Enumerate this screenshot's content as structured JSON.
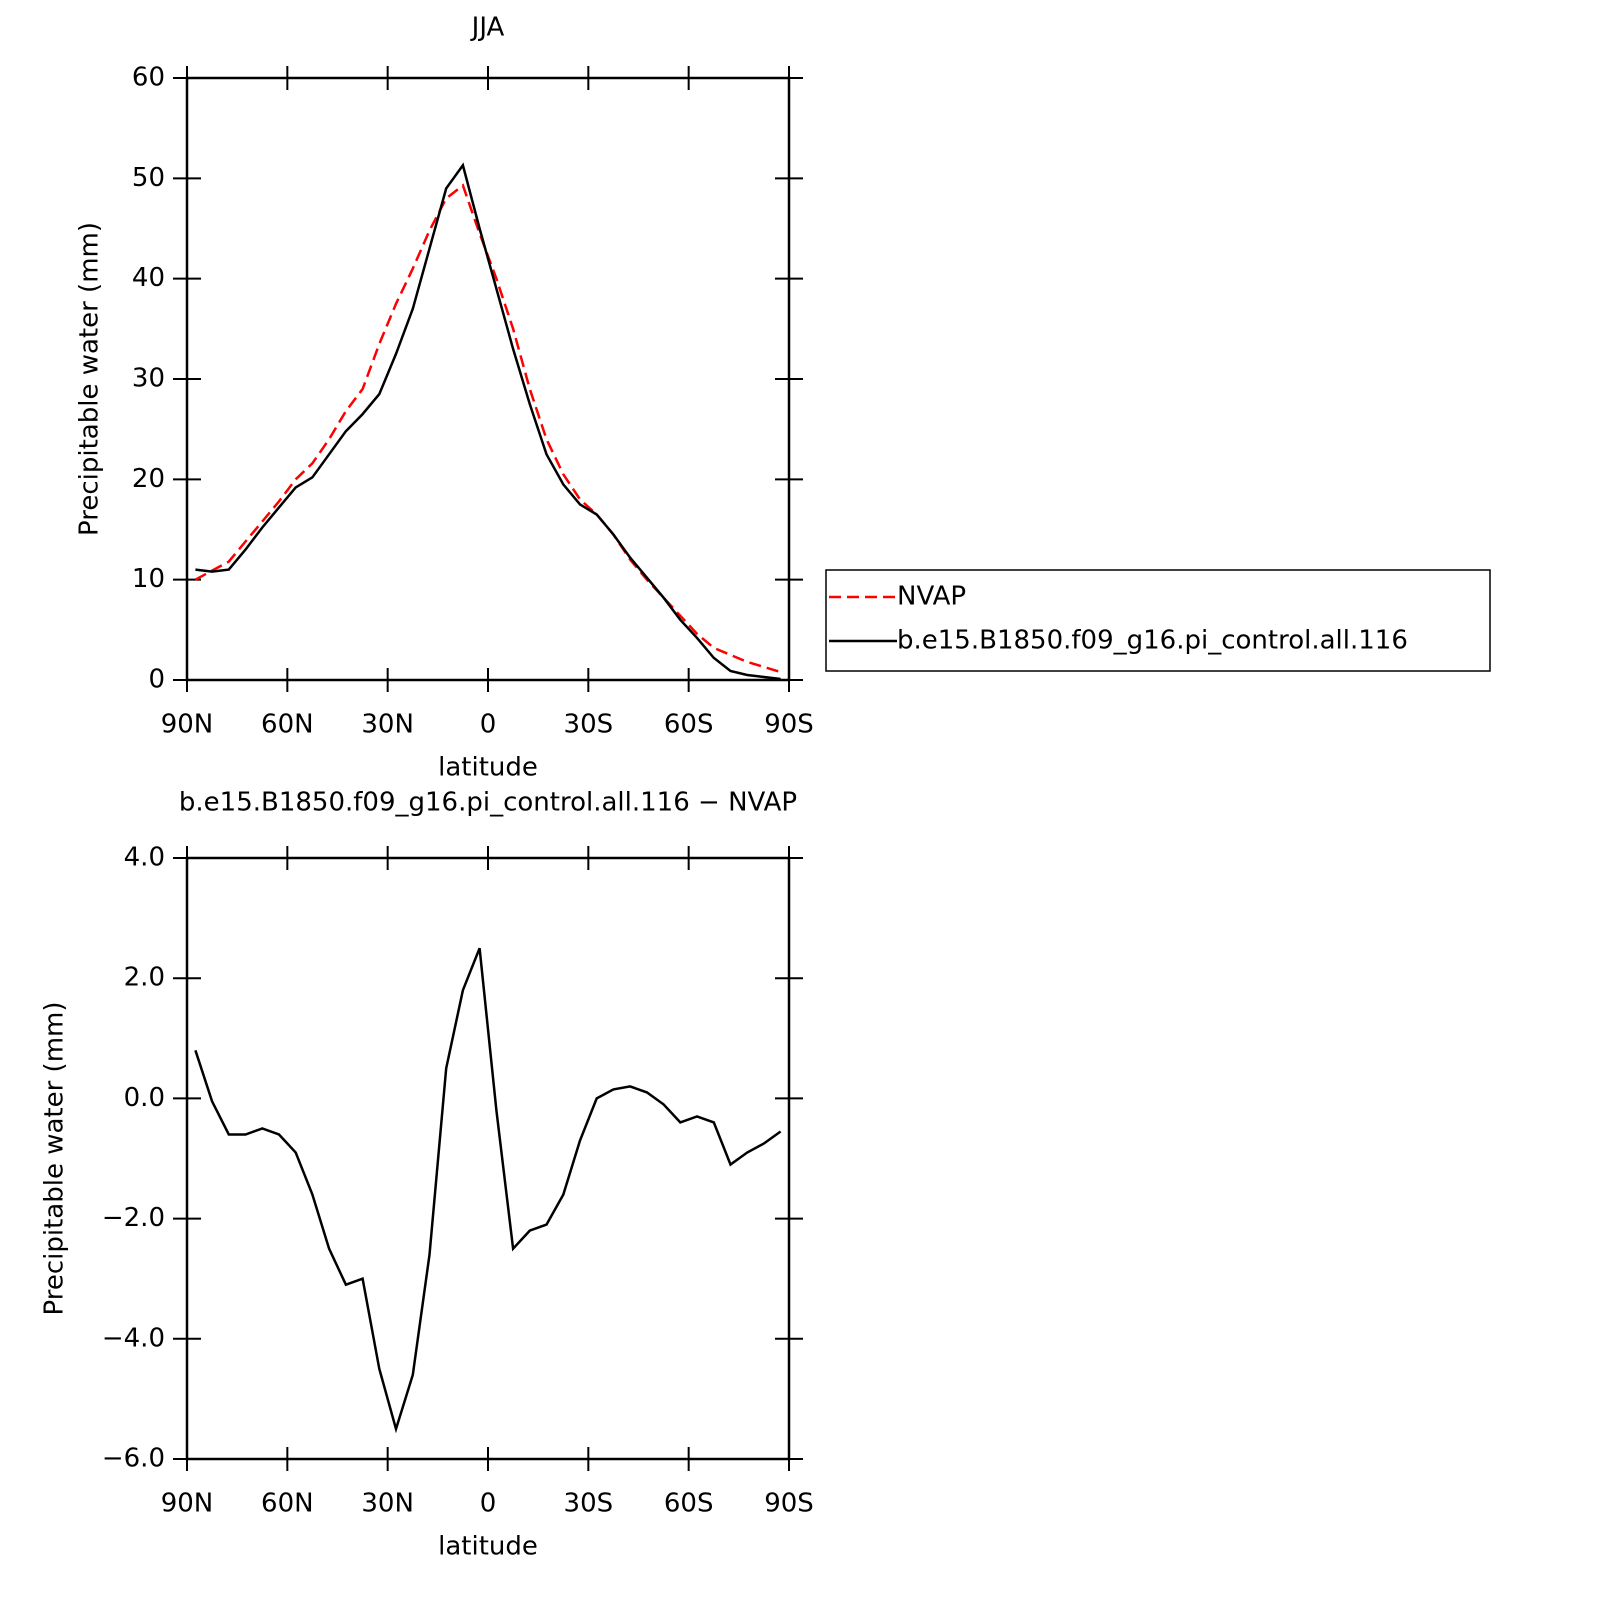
{
  "chart_data": [
    {
      "type": "line",
      "title": "JJA",
      "xlabel": "latitude",
      "ylabel": "Precipitable water (mm)",
      "x": [
        87.5,
        82.5,
        77.5,
        72.5,
        67.5,
        62.5,
        57.5,
        52.5,
        47.5,
        42.5,
        37.5,
        32.5,
        27.5,
        22.5,
        17.5,
        12.5,
        7.5,
        2.5,
        -2.5,
        -7.5,
        -12.5,
        -17.5,
        -22.5,
        -27.5,
        -32.5,
        -37.5,
        -42.5,
        -47.5,
        -52.5,
        -57.5,
        -62.5,
        -67.5,
        -72.5,
        -77.5,
        -82.5,
        -87.5
      ],
      "series": [
        {
          "name": "NVAP",
          "color": "#ff0000",
          "line_style": "dashed",
          "values": [
            10.0,
            10.9,
            11.8,
            13.8,
            15.8,
            17.8,
            20.0,
            21.6,
            24.0,
            26.8,
            29.0,
            33.5,
            37.5,
            41.0,
            44.8,
            48.0,
            49.3,
            44.5,
            40.0,
            35.0,
            29.0,
            24.0,
            20.5,
            18.0,
            16.5,
            14.5,
            12.0,
            10.0,
            8.2,
            6.4,
            4.6,
            3.2,
            2.5,
            1.8,
            1.3,
            0.8
          ]
        },
        {
          "name": "b.e15.B1850.f09_g16.pi_control.all.116",
          "color": "#000000",
          "line_style": "solid",
          "values": [
            11.0,
            10.8,
            11.0,
            13.0,
            15.2,
            17.2,
            19.2,
            20.2,
            22.5,
            24.8,
            26.5,
            28.5,
            32.5,
            37.0,
            43.0,
            49.0,
            51.3,
            45.0,
            39.0,
            33.0,
            27.5,
            22.5,
            19.5,
            17.5,
            16.5,
            14.5,
            12.2,
            10.2,
            8.2,
            6.0,
            4.2,
            2.2,
            0.9,
            0.5,
            0.3,
            0.1
          ]
        }
      ],
      "xlim": [
        90,
        -90
      ],
      "xticks": [
        {
          "value": 90,
          "label": "90N"
        },
        {
          "value": 60,
          "label": "60N"
        },
        {
          "value": 30,
          "label": "30N"
        },
        0,
        {
          "value": -30,
          "label": "30S"
        },
        {
          "value": -60,
          "label": "60S"
        },
        {
          "value": -90,
          "label": "90S"
        }
      ],
      "ylim": [
        0,
        60
      ],
      "yticks": [
        0,
        10,
        20,
        30,
        40,
        50,
        60
      ],
      "legend": "right"
    },
    {
      "type": "line",
      "title": "b.e15.B1850.f09_g16.pi_control.all.116 − NVAP",
      "xlabel": "latitude",
      "ylabel": "Precipitable water (mm)",
      "x": [
        87.5,
        82.5,
        77.5,
        72.5,
        67.5,
        62.5,
        57.5,
        52.5,
        47.5,
        42.5,
        37.5,
        32.5,
        27.5,
        22.5,
        17.5,
        12.5,
        7.5,
        2.5,
        -2.5,
        -7.5,
        -12.5,
        -17.5,
        -22.5,
        -27.5,
        -32.5,
        -37.5,
        -42.5,
        -47.5,
        -52.5,
        -57.5,
        -62.5,
        -67.5,
        -72.5,
        -77.5,
        -82.5,
        -87.5
      ],
      "series": [
        {
          "color": "#000000",
          "line_style": "solid",
          "values": [
            0.8,
            -0.05,
            -0.6,
            -0.6,
            -0.5,
            -0.6,
            -0.9,
            -1.6,
            -2.5,
            -3.1,
            -3.0,
            -4.5,
            -5.5,
            -4.6,
            -2.6,
            0.5,
            1.8,
            2.5,
            -0.2,
            -2.5,
            -2.2,
            -2.1,
            -1.6,
            -0.7,
            0.0,
            0.15,
            0.2,
            0.1,
            -0.1,
            -0.4,
            -0.3,
            -0.4,
            -1.1,
            -0.9,
            -0.75,
            -0.55
          ]
        }
      ],
      "xlim": [
        90,
        -90
      ],
      "xticks": [
        {
          "value": 90,
          "label": "90N"
        },
        {
          "value": 60,
          "label": "60N"
        },
        {
          "value": 30,
          "label": "30N"
        },
        0,
        {
          "value": -30,
          "label": "30S"
        },
        {
          "value": -60,
          "label": "60S"
        },
        {
          "value": -90,
          "label": "90S"
        }
      ],
      "ylim": [
        -6,
        4
      ],
      "yticks": [
        {
          "value": -6,
          "label": "−6.0"
        },
        {
          "value": -4,
          "label": "−4.0"
        },
        {
          "value": -2,
          "label": "−2.0"
        },
        {
          "value": 0,
          "label": "0.0"
        },
        {
          "value": 2,
          "label": "2.0"
        },
        {
          "value": 4,
          "label": "4.0"
        }
      ]
    }
  ]
}
